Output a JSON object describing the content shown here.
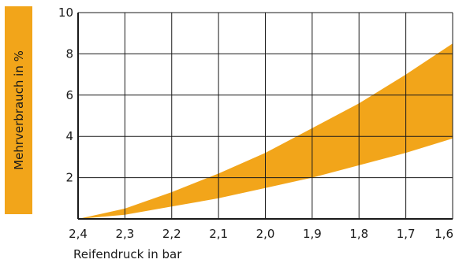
{
  "chart_data": {
    "type": "area",
    "xlabel": "Reifendruck in bar",
    "ylabel": "Mehrverbrauch in %",
    "x_ticks": [
      "2,4",
      "2,3",
      "2,2",
      "2,1",
      "2,0",
      "1,9",
      "1,8",
      "1,7",
      "1,6"
    ],
    "y_ticks": [
      "2",
      "4",
      "6",
      "8",
      "10"
    ],
    "xlim": [
      2.4,
      1.6
    ],
    "ylim": [
      0,
      10
    ],
    "grid": true,
    "band_color": "#f2a51a",
    "band": {
      "x": [
        2.4,
        2.3,
        2.2,
        2.1,
        2.0,
        1.9,
        1.8,
        1.7,
        1.6
      ],
      "lower": [
        0,
        0.2,
        0.6,
        1.0,
        1.5,
        2.0,
        2.6,
        3.2,
        3.9
      ],
      "upper": [
        0,
        0.5,
        1.3,
        2.2,
        3.2,
        4.4,
        5.6,
        7.0,
        8.5
      ]
    }
  }
}
